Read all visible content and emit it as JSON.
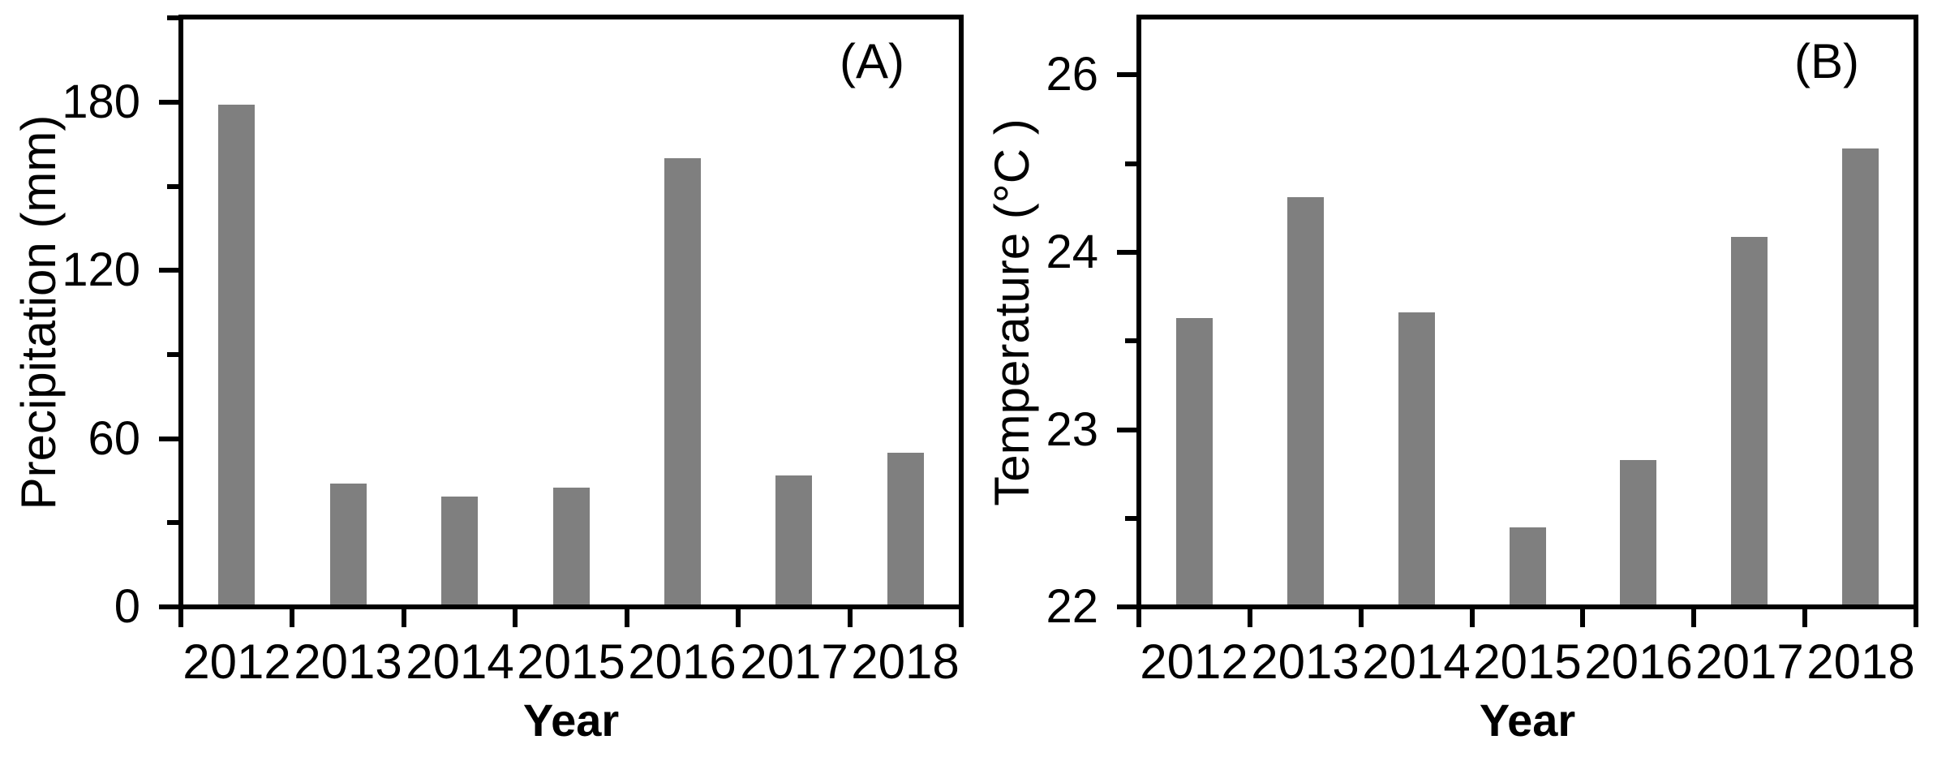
{
  "figure": {
    "background_color": "#ffffff",
    "bar_color": "#7f7f7f",
    "axis_color": "#000000"
  },
  "chart_data": [
    {
      "type": "bar",
      "panel_label": "(A)",
      "title": "",
      "xlabel": "Year",
      "ylabel": "Precipitation (mm)",
      "categories": [
        "2012",
        "2013",
        "2014",
        "2015",
        "2016",
        "2017",
        "2018"
      ],
      "values": [
        179,
        44,
        39.5,
        42.5,
        160,
        47,
        55
      ],
      "ylim": [
        0,
        210
      ],
      "yticks_major": [
        0,
        60,
        120,
        180
      ],
      "yticks_minor": [
        30,
        90,
        150,
        210
      ],
      "grid": "off",
      "legend": "none",
      "bar_color": "#7f7f7f"
    },
    {
      "type": "bar",
      "panel_label": "(B)",
      "title": "",
      "xlabel": "Year",
      "ylabel": "Temperature (°C )",
      "categories": [
        "2012",
        "2013",
        "2014",
        "2015",
        "2016",
        "2017",
        "2018"
      ],
      "values": [
        23.63,
        24.62,
        23.66,
        22.45,
        22.83,
        24.17,
        25.17
      ],
      "ylim": [
        22,
        26.65
      ],
      "yticks_major": [
        22,
        23,
        24,
        26
      ],
      "yticks_minor": [
        22.5,
        23.5,
        25
      ],
      "axis_note": "y-axis is piecewise: 22-24 plotted at twice the px-per-unit of 24-26 (25 is an unlabeled minor tick)",
      "grid": "off",
      "legend": "none",
      "bar_color": "#7f7f7f"
    }
  ]
}
